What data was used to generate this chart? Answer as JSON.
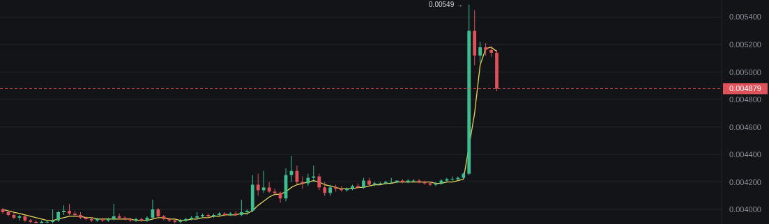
{
  "chart_data": {
    "type": "candlestick",
    "categories": [
      null,
      null,
      null,
      null,
      null,
      null,
      null,
      null,
      null,
      null,
      null,
      null,
      null,
      null,
      null,
      null,
      null,
      null,
      null,
      null,
      null,
      null,
      null,
      null,
      null,
      null,
      null,
      null,
      null,
      null,
      null,
      null,
      null,
      null,
      null,
      null,
      null,
      null,
      null,
      null,
      null,
      null,
      null,
      null,
      null,
      null,
      null,
      null,
      null,
      null,
      null,
      null,
      null,
      null,
      null,
      null,
      null,
      null,
      null,
      null,
      null,
      null,
      null,
      null,
      null,
      null,
      null,
      null,
      null,
      null,
      null,
      null,
      null,
      null,
      null,
      null,
      null,
      null,
      null,
      null,
      null,
      null,
      null,
      null,
      null,
      null,
      null,
      null,
      null,
      null,
      null,
      null,
      null,
      null,
      null,
      null,
      null,
      null,
      null,
      null,
      null,
      null,
      null,
      null,
      null,
      null,
      null,
      null,
      null,
      null,
      null,
      null,
      null,
      null,
      null,
      null,
      null,
      null,
      null,
      null,
      null,
      null,
      null,
      null,
      null,
      null,
      null,
      null,
      null,
      null
    ],
    "ohlc": [
      [
        0.004,
        0.00401,
        0.00397,
        0.00398
      ],
      [
        0.00398,
        0.00399,
        0.00395,
        0.00396
      ],
      [
        0.00396,
        0.00398,
        0.00393,
        0.00394
      ],
      [
        0.00394,
        0.00396,
        0.00392,
        0.00395
      ],
      [
        0.00395,
        0.00396,
        0.00391,
        0.00392
      ],
      [
        0.00392,
        0.00393,
        0.0039,
        0.00391
      ],
      [
        0.00391,
        0.00392,
        0.0039,
        0.0039
      ],
      [
        0.0039,
        0.00392,
        0.0039,
        0.00391
      ],
      [
        0.00391,
        0.00392,
        0.0039,
        0.00391
      ],
      [
        0.00391,
        0.004,
        0.0039,
        0.00392
      ],
      [
        0.00392,
        0.00399,
        0.00391,
        0.00398
      ],
      [
        0.00398,
        0.00403,
        0.00396,
        0.00399
      ],
      [
        0.00399,
        0.00404,
        0.00396,
        0.00397
      ],
      [
        0.00397,
        0.00399,
        0.00395,
        0.00396
      ],
      [
        0.00396,
        0.00398,
        0.00393,
        0.00394
      ],
      [
        0.00394,
        0.00395,
        0.00392,
        0.00393
      ],
      [
        0.00393,
        0.00394,
        0.00391,
        0.00392
      ],
      [
        0.00392,
        0.00394,
        0.00391,
        0.00393
      ],
      [
        0.00393,
        0.00394,
        0.00391,
        0.00392
      ],
      [
        0.00392,
        0.00394,
        0.00391,
        0.00393
      ],
      [
        0.00393,
        0.00404,
        0.00392,
        0.00395
      ],
      [
        0.00395,
        0.00397,
        0.00393,
        0.00394
      ],
      [
        0.00394,
        0.00395,
        0.00392,
        0.00393
      ],
      [
        0.00393,
        0.00394,
        0.00391,
        0.00392
      ],
      [
        0.00392,
        0.00394,
        0.00391,
        0.00393
      ],
      [
        0.00393,
        0.00394,
        0.00391,
        0.00392
      ],
      [
        0.00392,
        0.00395,
        0.00391,
        0.00394
      ],
      [
        0.00394,
        0.00407,
        0.00393,
        0.004
      ],
      [
        0.004,
        0.00401,
        0.00394,
        0.00395
      ],
      [
        0.00395,
        0.00396,
        0.00392,
        0.00393
      ],
      [
        0.00393,
        0.00394,
        0.00391,
        0.00392
      ],
      [
        0.00392,
        0.00393,
        0.0039,
        0.00391
      ],
      [
        0.00391,
        0.00393,
        0.0039,
        0.00392
      ],
      [
        0.00392,
        0.00394,
        0.00391,
        0.00393
      ],
      [
        0.00393,
        0.00395,
        0.00392,
        0.00394
      ],
      [
        0.00394,
        0.00398,
        0.00393,
        0.00395
      ],
      [
        0.00395,
        0.00397,
        0.00394,
        0.00396
      ],
      [
        0.00396,
        0.00397,
        0.00394,
        0.00395
      ],
      [
        0.00395,
        0.00397,
        0.00394,
        0.00396
      ],
      [
        0.00396,
        0.00398,
        0.00395,
        0.00397
      ],
      [
        0.00397,
        0.00398,
        0.00395,
        0.00396
      ],
      [
        0.00396,
        0.00398,
        0.00395,
        0.00397
      ],
      [
        0.00397,
        0.00399,
        0.00395,
        0.00396
      ],
      [
        0.00396,
        0.00407,
        0.00395,
        0.00398
      ],
      [
        0.00398,
        0.004,
        0.00396,
        0.00399
      ],
      [
        0.00399,
        0.00425,
        0.00398,
        0.00418
      ],
      [
        0.00418,
        0.00426,
        0.0041,
        0.00414
      ],
      [
        0.00414,
        0.00428,
        0.00412,
        0.00416
      ],
      [
        0.00416,
        0.0042,
        0.00412,
        0.00413
      ],
      [
        0.00413,
        0.00415,
        0.0041,
        0.00412
      ],
      [
        0.00412,
        0.00413,
        0.00405,
        0.00408
      ],
      [
        0.00408,
        0.0043,
        0.00406,
        0.00425
      ],
      [
        0.00425,
        0.00439,
        0.0042,
        0.00428
      ],
      [
        0.00428,
        0.00432,
        0.00418,
        0.0042
      ],
      [
        0.0042,
        0.00424,
        0.00415,
        0.00419
      ],
      [
        0.00419,
        0.00426,
        0.00417,
        0.00423
      ],
      [
        0.00423,
        0.00432,
        0.0042,
        0.00424
      ],
      [
        0.00424,
        0.00426,
        0.00414,
        0.00416
      ],
      [
        0.00416,
        0.0042,
        0.0041,
        0.00412
      ],
      [
        0.00412,
        0.00418,
        0.0041,
        0.00416
      ],
      [
        0.00416,
        0.00418,
        0.00413,
        0.00415
      ],
      [
        0.00415,
        0.00417,
        0.00413,
        0.00414
      ],
      [
        0.00414,
        0.00416,
        0.00413,
        0.00415
      ],
      [
        0.00415,
        0.00418,
        0.00414,
        0.00417
      ],
      [
        0.00417,
        0.00419,
        0.00415,
        0.00416
      ],
      [
        0.00416,
        0.00423,
        0.00415,
        0.00421
      ],
      [
        0.00421,
        0.00423,
        0.00417,
        0.00418
      ],
      [
        0.00418,
        0.0042,
        0.00417,
        0.00419
      ],
      [
        0.00419,
        0.0042,
        0.00418,
        0.00419
      ],
      [
        0.00419,
        0.00421,
        0.00418,
        0.0042
      ],
      [
        0.0042,
        0.00423,
        0.00419,
        0.0042
      ],
      [
        0.0042,
        0.00421,
        0.00419,
        0.00421
      ],
      [
        0.00421,
        0.00422,
        0.00419,
        0.0042
      ],
      [
        0.0042,
        0.00422,
        0.00419,
        0.00421
      ],
      [
        0.00421,
        0.00422,
        0.0042,
        0.00421
      ],
      [
        0.00421,
        0.00422,
        0.00419,
        0.0042
      ],
      [
        0.0042,
        0.00421,
        0.00418,
        0.00419
      ],
      [
        0.00419,
        0.0042,
        0.00417,
        0.00418
      ],
      [
        0.00418,
        0.0042,
        0.00417,
        0.00419
      ],
      [
        0.00419,
        0.00422,
        0.00418,
        0.00421
      ],
      [
        0.00421,
        0.00423,
        0.0042,
        0.00422
      ],
      [
        0.00422,
        0.00424,
        0.00421,
        0.00422
      ],
      [
        0.00422,
        0.00424,
        0.00421,
        0.00423
      ],
      [
        0.00423,
        0.00427,
        0.00422,
        0.00426
      ],
      [
        0.00426,
        0.00549,
        0.00425,
        0.0053
      ],
      [
        0.0053,
        0.00545,
        0.00505,
        0.00512
      ],
      [
        0.00512,
        0.00522,
        0.00507,
        0.00518
      ],
      [
        0.00518,
        0.00521,
        0.00512,
        0.00516
      ],
      [
        0.00516,
        0.00519,
        0.00511,
        0.00514
      ],
      [
        0.00514,
        0.00516,
        0.00486,
        0.004879
      ],
      null,
      null,
      null,
      null,
      null,
      null,
      null,
      null,
      null,
      null,
      null,
      null,
      null,
      null,
      null,
      null,
      null,
      null,
      null,
      null,
      null,
      null,
      null,
      null,
      null,
      null,
      null,
      null,
      null,
      null,
      null,
      null,
      null,
      null,
      null,
      null,
      null,
      null,
      null,
      null
    ],
    "series": [
      {
        "type": "line",
        "color": "#e6d85a",
        "values": [
          0.004,
          0.00399,
          0.00398,
          0.00397,
          0.00396,
          0.00395,
          0.00394,
          0.00393,
          0.00392,
          0.00392,
          0.00393,
          0.00394,
          0.00395,
          0.00395,
          0.00395,
          0.00394,
          0.00394,
          0.00393,
          0.00393,
          0.00393,
          0.00393,
          0.00393,
          0.00393,
          0.00393,
          0.00392,
          0.00392,
          0.00392,
          0.00393,
          0.00394,
          0.00394,
          0.00393,
          0.00393,
          0.00392,
          0.00392,
          0.00393,
          0.00393,
          0.00394,
          0.00394,
          0.00395,
          0.00395,
          0.00396,
          0.00396,
          0.00396,
          0.00397,
          0.00397,
          0.00399,
          0.00403,
          0.00406,
          0.00409,
          0.00411,
          0.00411,
          0.00413,
          0.00416,
          0.00418,
          0.00419,
          0.0042,
          0.00421,
          0.0042,
          0.00418,
          0.00417,
          0.00416,
          0.00415,
          0.00415,
          0.00415,
          0.00416,
          0.00416,
          0.00417,
          0.00418,
          0.00418,
          0.00419,
          0.00419,
          0.0042,
          0.0042,
          0.0042,
          0.0042,
          0.0042,
          0.0042,
          0.0042,
          0.00419,
          0.00419,
          0.0042,
          0.0042,
          0.00421,
          0.00422,
          null,
          0.0047,
          0.00505,
          0.00517,
          0.00518,
          0.00515,
          null,
          null,
          null,
          null,
          null,
          null,
          null,
          null,
          null,
          null,
          null,
          null,
          null,
          null,
          null,
          null,
          null,
          null,
          null,
          null,
          null,
          null,
          null,
          null,
          null,
          null,
          null,
          null,
          null,
          null,
          null,
          null,
          null,
          null,
          null,
          null,
          null,
          null,
          null,
          null
        ]
      }
    ],
    "ylim": [
      0.003894,
      0.005524
    ],
    "yticks": [
      {
        "value": 0.004,
        "label": "0.004000"
      },
      {
        "value": 0.0042,
        "label": "0.004200"
      },
      {
        "value": 0.0044,
        "label": "0.004400"
      },
      {
        "value": 0.0046,
        "label": "0.004600"
      },
      {
        "value": 0.0048,
        "label": "0.004800"
      },
      {
        "value": 0.005,
        "label": "0.005000"
      },
      {
        "value": 0.0052,
        "label": "0.005200"
      },
      {
        "value": 0.0054,
        "label": "0.005400"
      }
    ],
    "grid": "y",
    "tick_labels": "y",
    "ref_lines": [
      {
        "axis": "y",
        "value": 0.004879,
        "label": "0.004879",
        "color": "#e0525a",
        "line_style": "dashed"
      }
    ],
    "annotations": [
      "0.00549 →"
    ]
  }
}
